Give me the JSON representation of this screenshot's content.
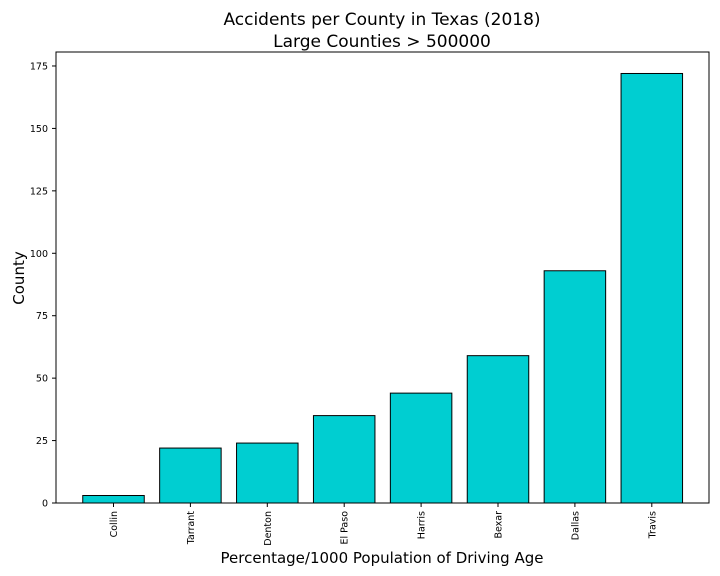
{
  "chart_data": {
    "type": "bar",
    "title": "Accidents per County in Texas (2018)",
    "subtitle": "Large Counties > 500000",
    "xlabel": "Percentage/1000 Population of Driving Age",
    "ylabel": "County",
    "categories": [
      "Collin",
      "Tarrant",
      "Denton",
      "El Paso",
      "Harris",
      "Bexar",
      "Dallas",
      "Travis"
    ],
    "values": [
      3,
      22,
      24,
      35,
      44,
      59,
      93,
      172
    ],
    "ylim": [
      0,
      180.6
    ],
    "yticks": [
      0,
      25,
      50,
      75,
      100,
      125,
      150,
      175
    ],
    "grid": false,
    "legend": "none",
    "bar_color": "#00CED1",
    "bar_edge_color": "#000000"
  }
}
